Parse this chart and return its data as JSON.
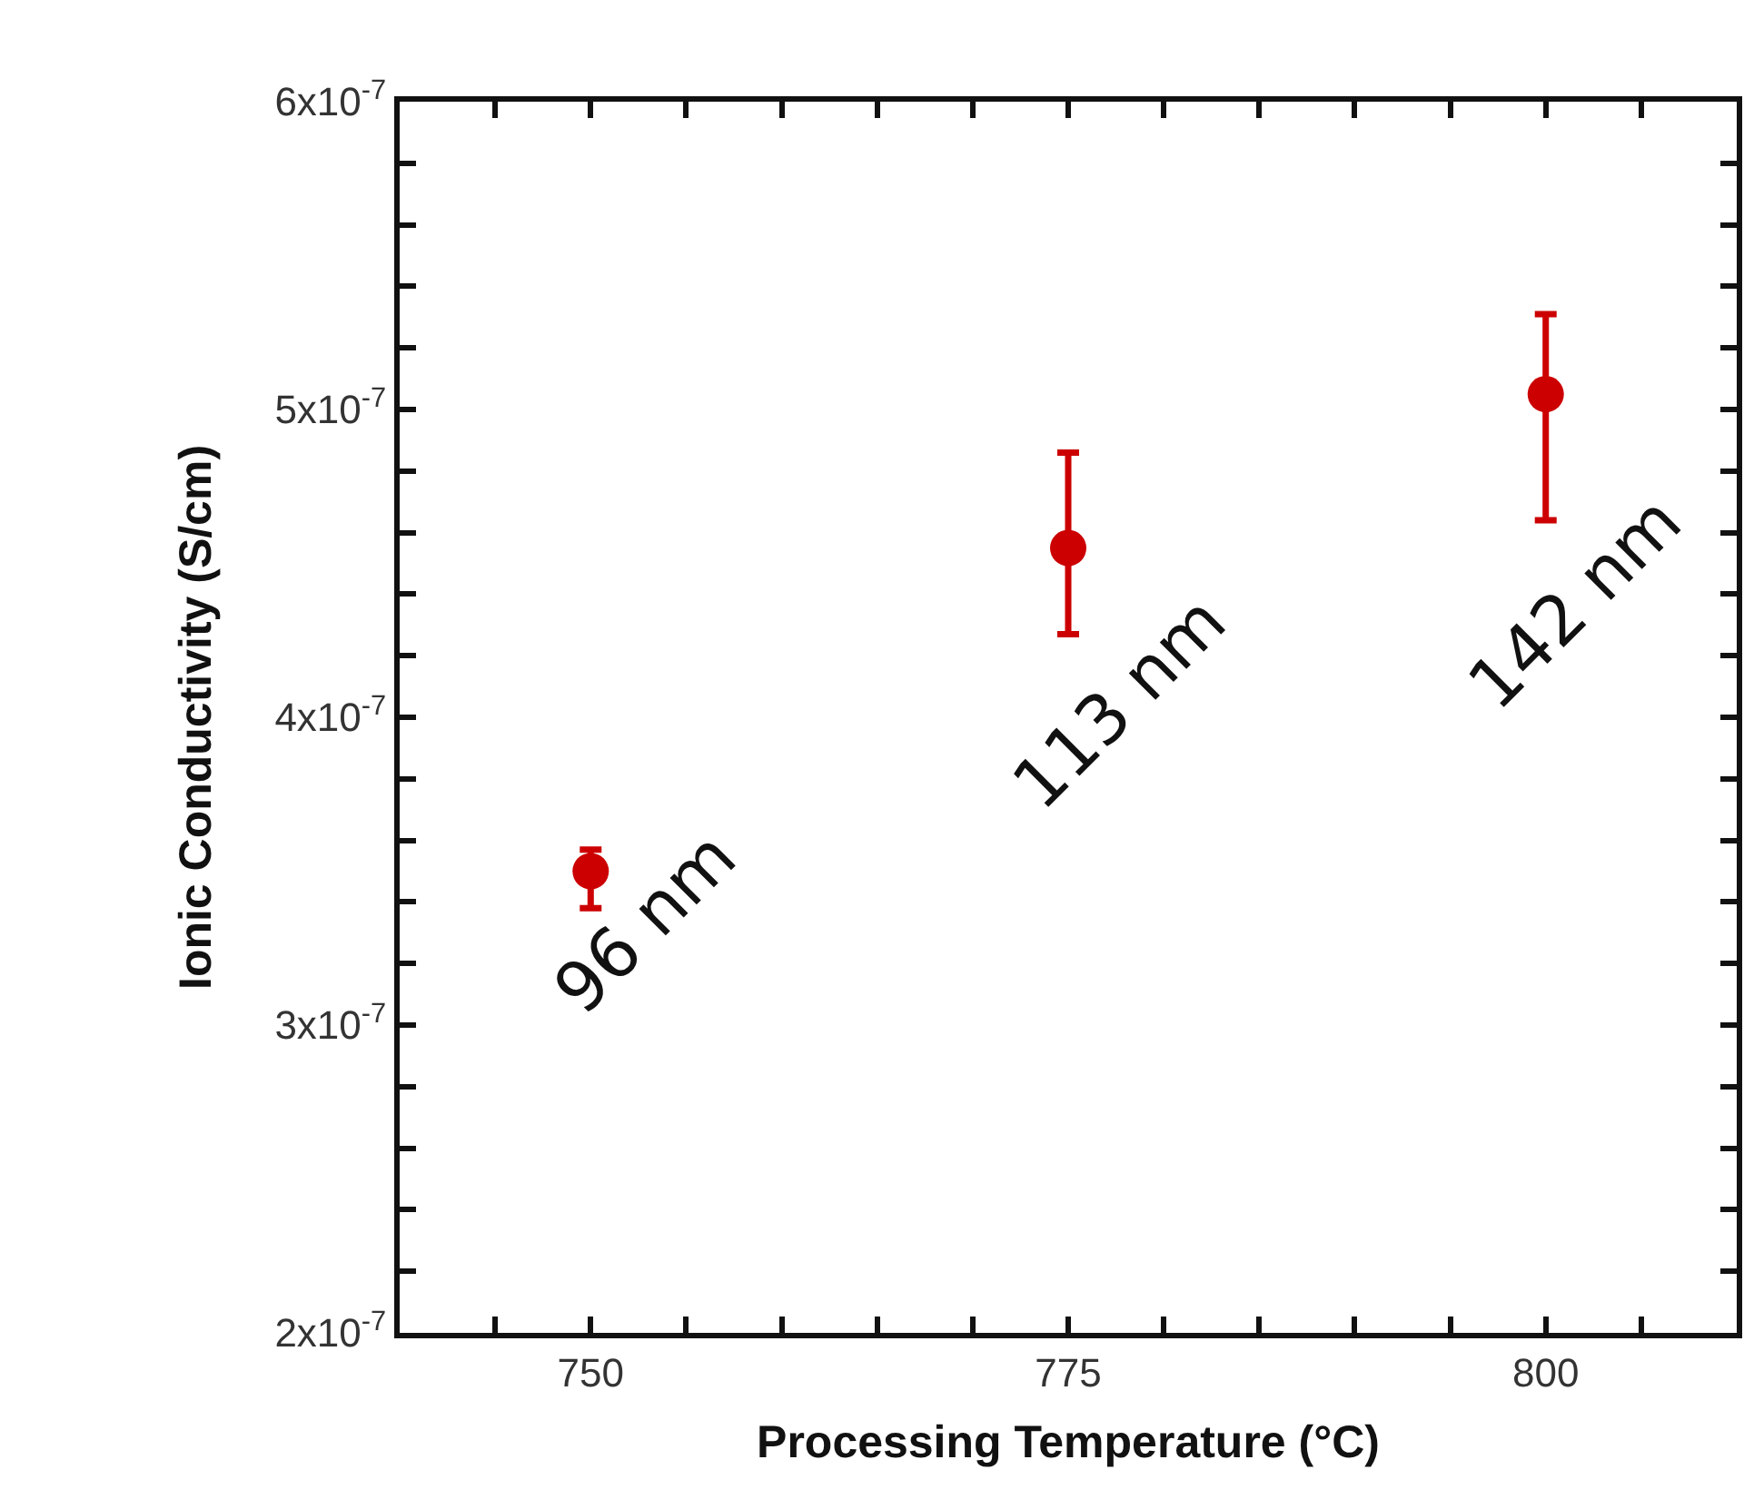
{
  "chart_data": {
    "type": "scatter",
    "xlabel": "Processing Temperature (°C)",
    "ylabel": "Ionic Conductivity (S/cm)",
    "x": [
      750,
      775,
      800
    ],
    "series": [
      {
        "color": "#cc0000",
        "values": [
          3.5e-07,
          4.55e-07,
          5.05e-07
        ],
        "errors": [
          [
            3.38e-07,
            3.57e-07
          ],
          [
            4.27e-07,
            4.86e-07
          ],
          [
            4.64e-07,
            5.31e-07
          ]
        ]
      }
    ],
    "marker": "circle",
    "xlim": [
      740,
      810
    ],
    "xticks": [
      {
        "value": 745,
        "label": null
      },
      750,
      {
        "value": 755,
        "label": null
      },
      {
        "value": 760,
        "label": null
      },
      {
        "value": 765,
        "label": null
      },
      {
        "value": 770,
        "label": null
      },
      775,
      {
        "value": 780,
        "label": null
      },
      {
        "value": 785,
        "label": null
      },
      {
        "value": 790,
        "label": null
      },
      {
        "value": 795,
        "label": null
      },
      800,
      {
        "value": 805,
        "label": null
      }
    ],
    "ylim": [
      2e-07,
      6e-07
    ],
    "yticks": [
      {
        "value": 2e-07,
        "label": "2x10$^{-7}$"
      },
      {
        "value": 2.2e-07,
        "label": null
      },
      {
        "value": 2.4e-07,
        "label": null
      },
      {
        "value": 2.6e-07,
        "label": null
      },
      {
        "value": 2.8e-07,
        "label": null
      },
      {
        "value": 3e-07,
        "label": "3x10$^{-7}$"
      },
      {
        "value": 3.2e-07,
        "label": null
      },
      {
        "value": 3.4e-07,
        "label": null
      },
      {
        "value": 3.6e-07,
        "label": null
      },
      {
        "value": 3.8e-07,
        "label": null
      },
      {
        "value": 4e-07,
        "label": "4x10$^{-7}$"
      },
      {
        "value": 4.2e-07,
        "label": null
      },
      {
        "value": 4.4e-07,
        "label": null
      },
      {
        "value": 4.6e-07,
        "label": null
      },
      {
        "value": 4.8e-07,
        "label": null
      },
      {
        "value": 5e-07,
        "label": "5x10$^{-7}$"
      },
      {
        "value": 5.2e-07,
        "label": null
      },
      {
        "value": 5.4e-07,
        "label": null
      },
      {
        "value": 5.6e-07,
        "label": null
      },
      {
        "value": 5.8e-07,
        "label": null
      },
      {
        "value": 6e-07,
        "label": "6x10$^{-7}$"
      }
    ],
    "annotations": [
      {
        "text": "96 nm",
        "x": 750,
        "y": 3.5e-07
      },
      {
        "text": "113 nm",
        "x": 775,
        "y": 4.55e-07
      },
      {
        "text": "142 nm",
        "x": 800,
        "y": 5.05e-07
      }
    ]
  }
}
